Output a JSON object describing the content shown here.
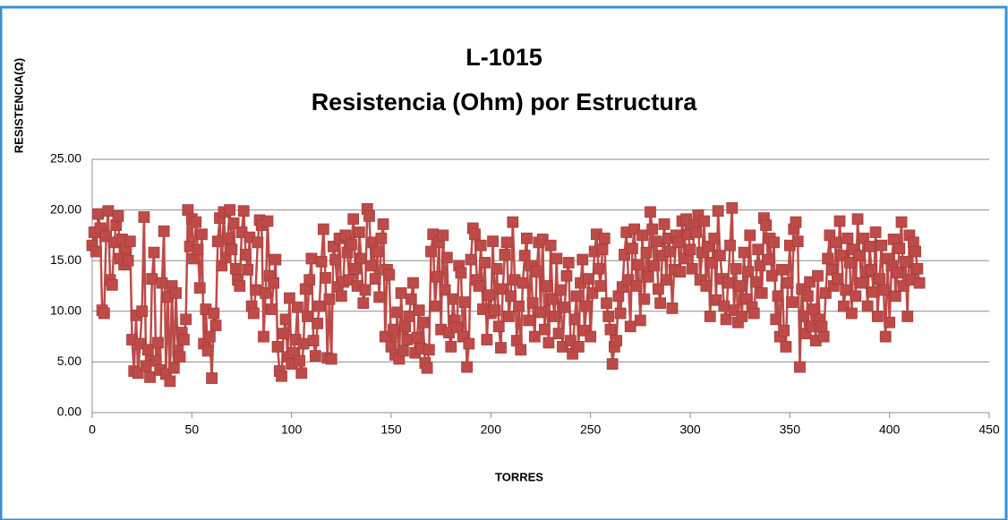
{
  "chart_data": {
    "type": "line",
    "title": "L-1015",
    "subtitle": "Resistencia (Ohm) por Estructura",
    "x_label": "TORRES",
    "y_label": "RESISTENCIA(Ω)",
    "xlim": [
      0,
      450
    ],
    "xticks": [
      0,
      50,
      100,
      150,
      200,
      250,
      300,
      350,
      400,
      450
    ],
    "ylim": [
      0,
      25
    ],
    "yticks": [
      {
        "value": 0,
        "label": "0.00"
      },
      {
        "value": 5,
        "label": "5.00"
      },
      {
        "value": 10,
        "label": "10.00"
      },
      {
        "value": 15,
        "label": "15.00"
      },
      {
        "value": 20,
        "label": "20.00"
      },
      {
        "value": 25,
        "label": "25.00"
      }
    ],
    "grid": true,
    "x": [
      0,
      1,
      2,
      3,
      4,
      5,
      6,
      7,
      8,
      9,
      10,
      11,
      12,
      13,
      14,
      15,
      16,
      17,
      18,
      19,
      20,
      21,
      22,
      23,
      24,
      25,
      26,
      27,
      28,
      29,
      30,
      31,
      32,
      33,
      34,
      35,
      36,
      37,
      38,
      39,
      40,
      41,
      42,
      43,
      44,
      45,
      46,
      47,
      48,
      49,
      50,
      51,
      52,
      53,
      54,
      55,
      56,
      57,
      58,
      59,
      60,
      61,
      62,
      63,
      64,
      65,
      66,
      67,
      68,
      69,
      70,
      71,
      72,
      73,
      74,
      75,
      76,
      77,
      78,
      79,
      80,
      81,
      82,
      83,
      84,
      85,
      86,
      87,
      88,
      89,
      90,
      91,
      92,
      93,
      94,
      95,
      96,
      97,
      98,
      99,
      100,
      101,
      102,
      103,
      104,
      105,
      106,
      107,
      108,
      109,
      110,
      111,
      112,
      113,
      114,
      115,
      116,
      117,
      118,
      119,
      120,
      121,
      122,
      123,
      124,
      125,
      126,
      127,
      128,
      129,
      130,
      131,
      132,
      133,
      134,
      135,
      136,
      137,
      138,
      139,
      140,
      141,
      142,
      143,
      144,
      145,
      146,
      147,
      148,
      149,
      150,
      151,
      152,
      153,
      154,
      155,
      156,
      157,
      158,
      159,
      160,
      161,
      162,
      163,
      164,
      165,
      166,
      167,
      168,
      169,
      170,
      171,
      172,
      173,
      174,
      175,
      176,
      177,
      178,
      179,
      180,
      181,
      182,
      183,
      184,
      185,
      186,
      187,
      188,
      189,
      190,
      191,
      192,
      193,
      194,
      195,
      196,
      197,
      198,
      199,
      200,
      201,
      202,
      203,
      204,
      205,
      206,
      207,
      208,
      209,
      210,
      211,
      212,
      213,
      214,
      215,
      216,
      217,
      218,
      219,
      220,
      221,
      222,
      223,
      224,
      225,
      226,
      227,
      228,
      229,
      230,
      231,
      232,
      233,
      234,
      235,
      236,
      237,
      238,
      239,
      240,
      241,
      242,
      243,
      244,
      245,
      246,
      247,
      248,
      249,
      250,
      251,
      252,
      253,
      254,
      255,
      256,
      257,
      258,
      259,
      260,
      261,
      262,
      263,
      264,
      265,
      266,
      267,
      268,
      269,
      270,
      271,
      272,
      273,
      274,
      275,
      276,
      277,
      278,
      279,
      280,
      281,
      282,
      283,
      284,
      285,
      286,
      287,
      288,
      289,
      290,
      291,
      292,
      293,
      294,
      295,
      296,
      297,
      298,
      299,
      300,
      301,
      302,
      303,
      304,
      305,
      306,
      307,
      308,
      309,
      310,
      311,
      312,
      313,
      314,
      315,
      316,
      317,
      318,
      319,
      320,
      321,
      322,
      323,
      324,
      325,
      326,
      327,
      328,
      329,
      330,
      331,
      332,
      333,
      334,
      335,
      336,
      337,
      338,
      339,
      340,
      341,
      342,
      343,
      344,
      345,
      346,
      347,
      348,
      349,
      350,
      351,
      352,
      353,
      354,
      355,
      356,
      357,
      358,
      359,
      360,
      361,
      362,
      363,
      364,
      365,
      366,
      367,
      368,
      369,
      370,
      371,
      372,
      373,
      374,
      375,
      376,
      377,
      378,
      379,
      380,
      381,
      382,
      383,
      384,
      385,
      386,
      387,
      388,
      389,
      390,
      391,
      392,
      393,
      394,
      395,
      396,
      397,
      398,
      399,
      400,
      401,
      402,
      403,
      404,
      405,
      406,
      407,
      408,
      409,
      410,
      411,
      412,
      413,
      414,
      415
    ],
    "series": [
      {
        "color": "#be4b48",
        "values": [
          16.5,
          17.8,
          15.9,
          19.6,
          18.2,
          10.1,
          9.8,
          17.4,
          19.9,
          13.1,
          12.6,
          16.8,
          18.5,
          19.4,
          15.2,
          17.1,
          14.6,
          16.2,
          15.0,
          16.9,
          7.2,
          4.1,
          9.6,
          3.9,
          6.8,
          10.0,
          19.3,
          4.6,
          6.2,
          3.5,
          13.2,
          15.8,
          5.1,
          6.9,
          4.2,
          12.8,
          17.9,
          3.8,
          11.4,
          3.1,
          12.5,
          4.4,
          11.8,
          6.1,
          5.5,
          7.9,
          7.2,
          9.2,
          20.0,
          16.4,
          19.1,
          15.2,
          18.8,
          16.1,
          12.3,
          17.6,
          6.8,
          10.2,
          6.1,
          7.5,
          3.4,
          9.8,
          8.6,
          16.9,
          19.2,
          14.5,
          19.8,
          15.3,
          17.2,
          20.0,
          16.1,
          18.7,
          14.2,
          13.1,
          12.5,
          17.8,
          19.9,
          15.6,
          14.1,
          17.3,
          10.5,
          9.8,
          12.1,
          16.8,
          19.0,
          18.5,
          7.5,
          11.8,
          18.9,
          13.5,
          10.2,
          12.8,
          15.1,
          6.5,
          4.1,
          3.6,
          7.8,
          9.2,
          5.5,
          11.3,
          4.8,
          5.9,
          7.2,
          10.4,
          5.1,
          3.9,
          6.8,
          12.2,
          9.5,
          13.1,
          15.2,
          7.1,
          5.6,
          8.8,
          10.5,
          14.9,
          18.1,
          13.3,
          5.4,
          11.2,
          5.3,
          16.4,
          15.1,
          12.4,
          17.2,
          11.5,
          12.9,
          17.5,
          15.8,
          13.1,
          16.6,
          19.1,
          14.2,
          12.5,
          17.8,
          15.2,
          10.8,
          12.1,
          20.1,
          19.4,
          14.5,
          16.8,
          13.2,
          15.9,
          11.4,
          17.2,
          18.6,
          7.5,
          14.1,
          13.6,
          6.5,
          8.2,
          5.7,
          9.9,
          5.3,
          11.8,
          6.1,
          8.5,
          7.2,
          9.5,
          11.2,
          12.8,
          5.9,
          7.4,
          10.1,
          6.3,
          8.9,
          4.9,
          4.4,
          6.2,
          15.9,
          17.6,
          10.5,
          13.4,
          16.8,
          8.2,
          17.5,
          12.1,
          15.3,
          7.9,
          6.5,
          11.2,
          9.1,
          8.4,
          14.5,
          13.8,
          7.5,
          10.9,
          4.5,
          6.8,
          15.1,
          18.2,
          17.6,
          13.1,
          12.5,
          16.5,
          10.2,
          14.8,
          7.2,
          11.6,
          9.8,
          16.9,
          10.1,
          14.2,
          8.5,
          6.4,
          12.2,
          15.6,
          16.8,
          9.5,
          11.5,
          18.8,
          13.1,
          7.1,
          10.5,
          6.2,
          12.8,
          15.5,
          17.2,
          9.1,
          14.5,
          10.8,
          7.5,
          13.9,
          16.8,
          9.9,
          17.1,
          8.2,
          12.5,
          6.9,
          16.5,
          11.2,
          9.5,
          15.2,
          7.8,
          12.1,
          6.5,
          10.4,
          13.5,
          14.8,
          7.1,
          5.8,
          9.2,
          11.5,
          6.5,
          12.8,
          15.1,
          8.1,
          10.5,
          13.2,
          7.5,
          11.8,
          15.9,
          17.6,
          14.2,
          12.5,
          16.1,
          17.2,
          10.8,
          9.5,
          8.2,
          4.8,
          6.5,
          7.1,
          11.5,
          9.8,
          12.4,
          15.6,
          17.8,
          13.1,
          8.5,
          16.2,
          18.1,
          12.5,
          14.6,
          9.1,
          17.5,
          11.2,
          15.8,
          13.4,
          19.8,
          18.1,
          14.5,
          16.9,
          12.2,
          10.8,
          15.5,
          18.6,
          13.1,
          17.2,
          15.9,
          10.3,
          14.1,
          17.5,
          16.8,
          13.9,
          18.9,
          15.2,
          19.1,
          17.6,
          16.1,
          14.2,
          18.5,
          17.8,
          19.5,
          13.1,
          15.8,
          18.9,
          12.5,
          16.4,
          9.5,
          14.8,
          17.2,
          11.1,
          19.9,
          15.5,
          13.2,
          10.5,
          9.2,
          12.8,
          16.5,
          20.2,
          10.1,
          14.2,
          8.9,
          12.5,
          9.5,
          15.8,
          11.2,
          13.9,
          17.5,
          10.4,
          9.8,
          12.9,
          16.1,
          14.5,
          11.8,
          19.2,
          18.5,
          15.1,
          17.2,
          13.5,
          16.8,
          9.2,
          11.5,
          7.5,
          14.1,
          8.1,
          6.5,
          12.8,
          16.5,
          10.9,
          18.1,
          18.8,
          16.9,
          4.5,
          12.2,
          9.5,
          7.8,
          11.5,
          12.9,
          8.5,
          10.2,
          7.1,
          13.5,
          9.2,
          8.5,
          7.5,
          11.8,
          15.2,
          17.5,
          14.1,
          12.5,
          16.8,
          13.2,
          18.9,
          15.5,
          10.5,
          12.1,
          17.2,
          14.8,
          9.8,
          16.1,
          11.5,
          19.1,
          15.5,
          12.8,
          17.2,
          13.9,
          10.5,
          16.4,
          14.1,
          11.9,
          17.8,
          9.5,
          13.2,
          16.5,
          12.1,
          7.5,
          15.2,
          8.9,
          14.5,
          17.1,
          11.5,
          13.8,
          16.2,
          18.8,
          12.5,
          14.9,
          9.5,
          17.5,
          13.1,
          16.8,
          15.9,
          14.2,
          12.8
        ]
      }
    ]
  }
}
